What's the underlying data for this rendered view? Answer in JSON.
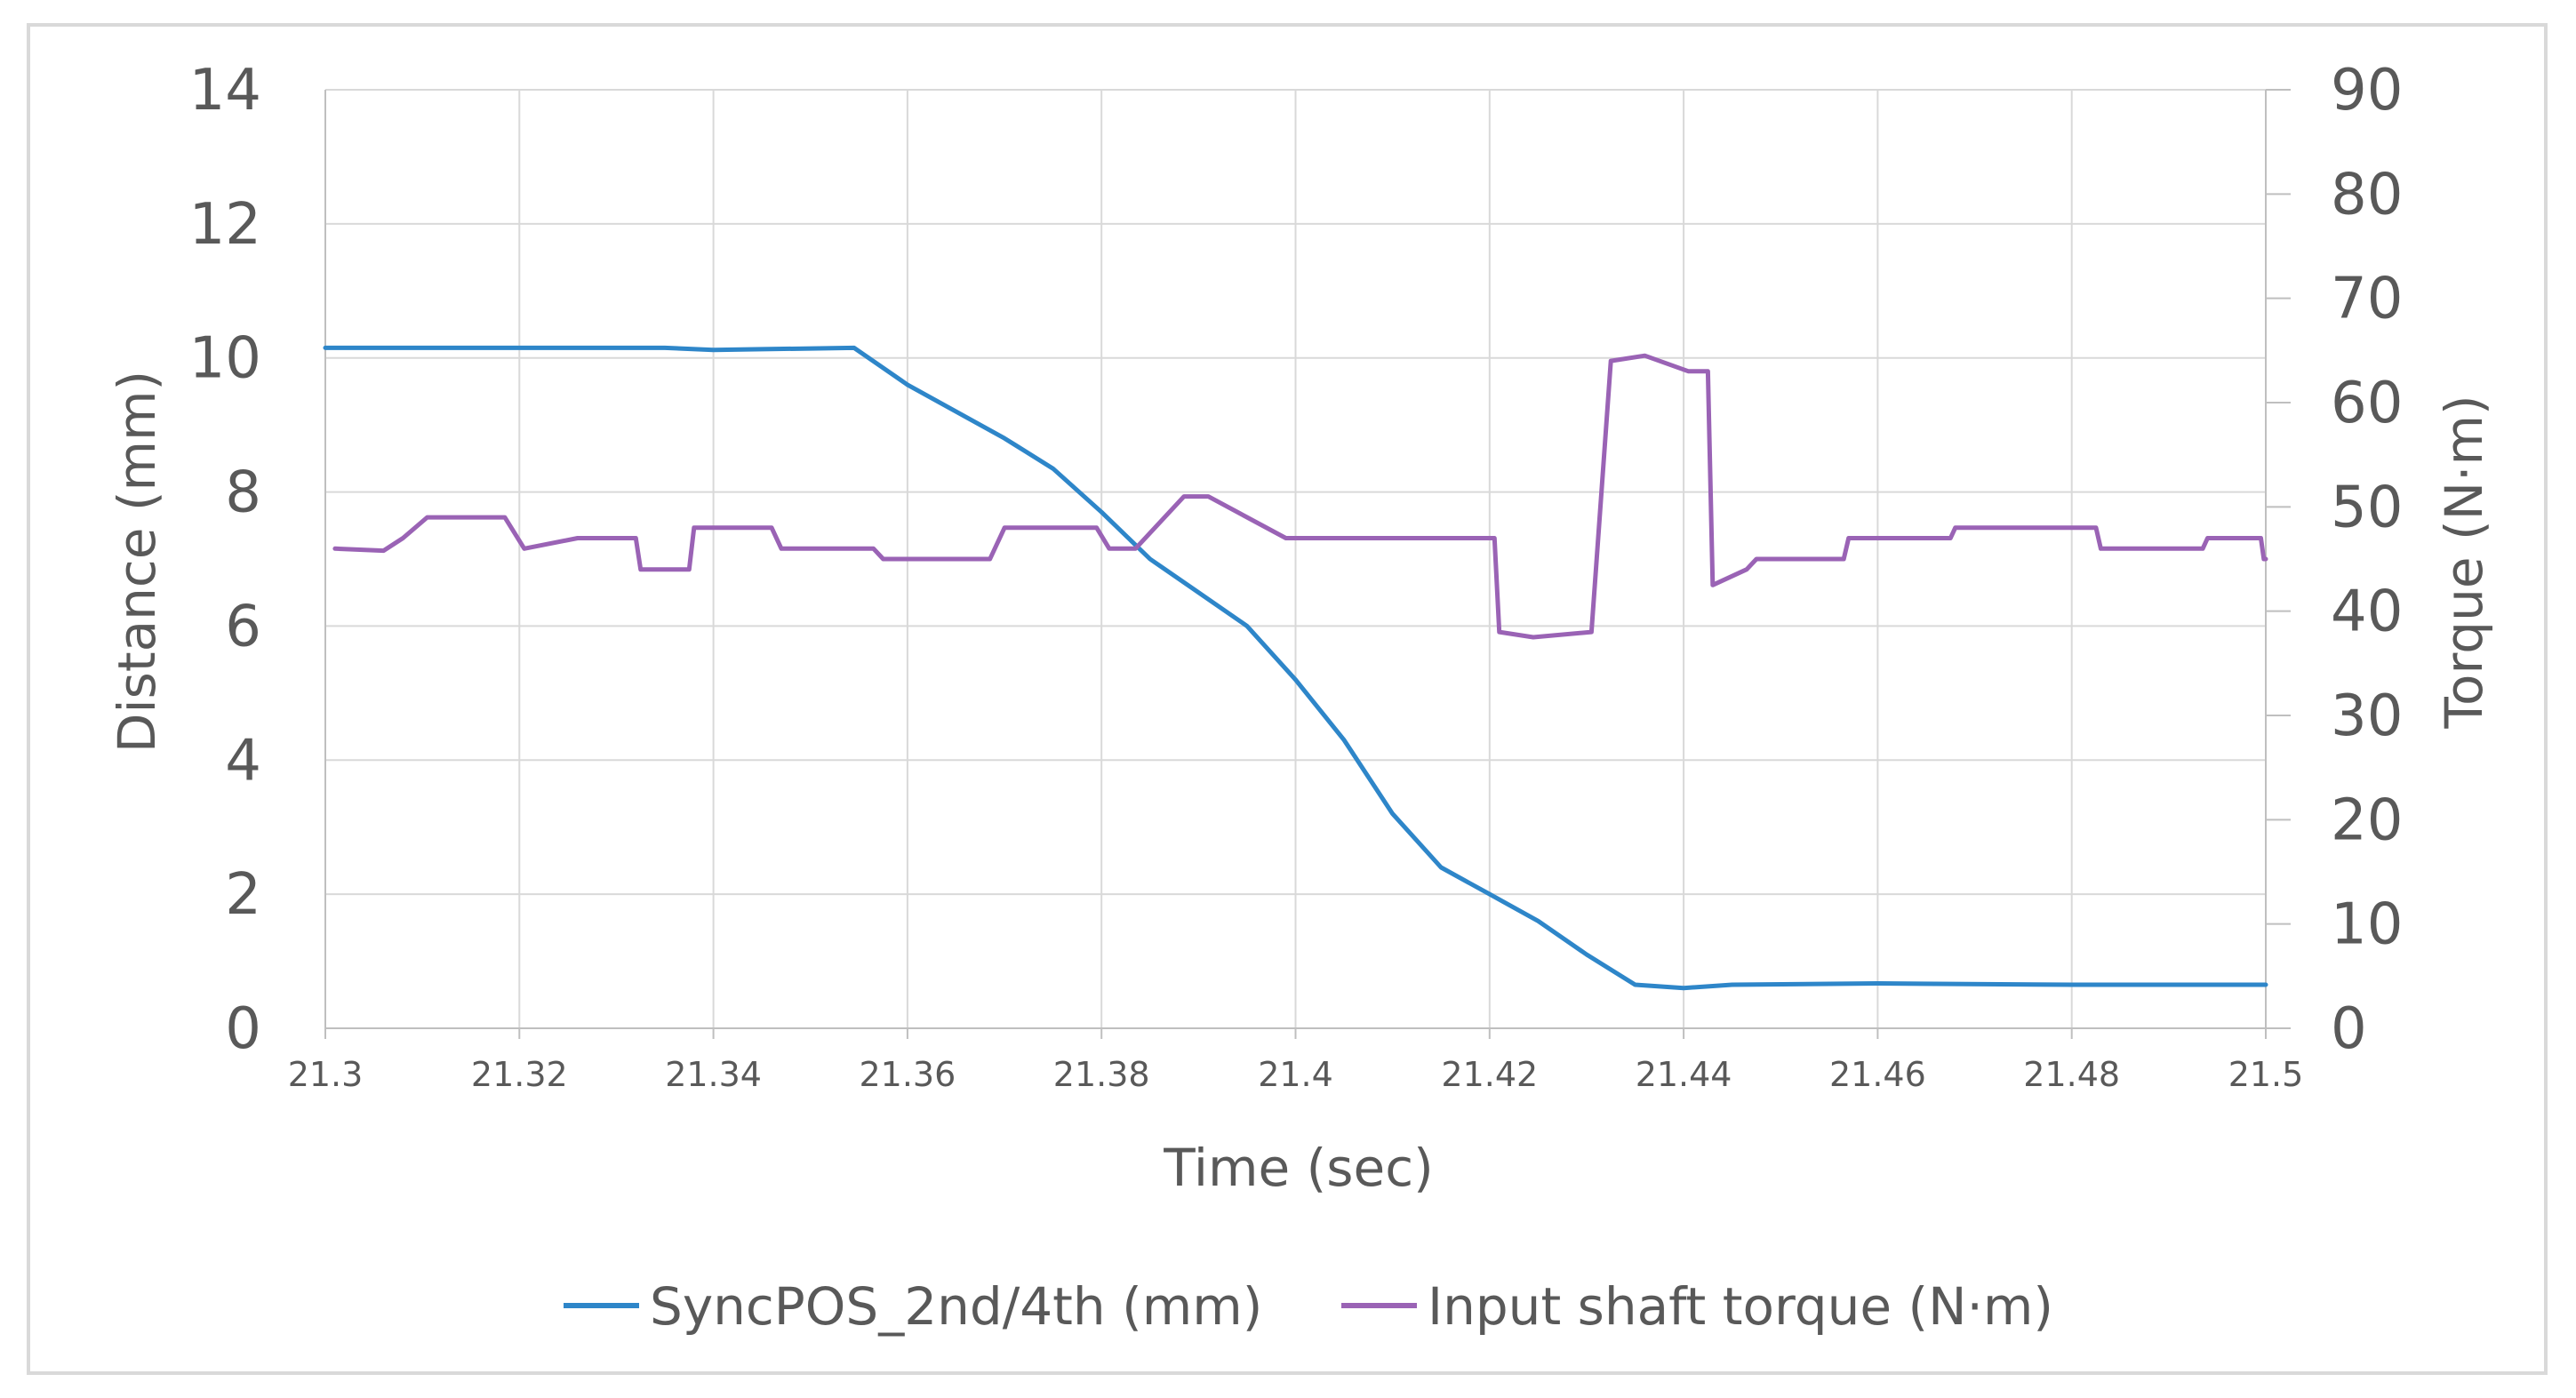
{
  "chart_data": {
    "type": "line",
    "title": "",
    "xlabel": "Time (sec)",
    "ylabel": "Distance (mm)",
    "y2label": "Torque (N·m)",
    "xlim": [
      21.3,
      21.5
    ],
    "ylim": [
      0,
      14
    ],
    "y2lim": [
      0,
      90
    ],
    "grid": true,
    "legend_position": "bottom",
    "x_ticks": [
      "21.3",
      "21.32",
      "21.34",
      "21.36",
      "21.38",
      "21.4",
      "21.42",
      "21.44",
      "21.46",
      "21.48",
      "21.5"
    ],
    "y_ticks": [
      "0",
      "2",
      "4",
      "6",
      "8",
      "10",
      "12",
      "14"
    ],
    "y2_ticks": [
      "0",
      "10",
      "20",
      "30",
      "40",
      "50",
      "60",
      "70",
      "80",
      "90"
    ],
    "series": [
      {
        "name": "SyncPOS_2nd/4th (mm)",
        "axis": "left",
        "color": "#2e86c9",
        "points": [
          [
            21.3,
            10.15
          ],
          [
            21.335,
            10.15
          ],
          [
            21.34,
            10.12
          ],
          [
            21.345,
            10.13
          ],
          [
            21.3545,
            10.15
          ],
          [
            21.356,
            10.0
          ],
          [
            21.36,
            9.6
          ],
          [
            21.365,
            9.2
          ],
          [
            21.37,
            8.8
          ],
          [
            21.375,
            8.35
          ],
          [
            21.38,
            7.7
          ],
          [
            21.385,
            7.0
          ],
          [
            21.39,
            6.5
          ],
          [
            21.395,
            6.0
          ],
          [
            21.4,
            5.2
          ],
          [
            21.405,
            4.3
          ],
          [
            21.41,
            3.2
          ],
          [
            21.415,
            2.4
          ],
          [
            21.42,
            2.0
          ],
          [
            21.425,
            1.6
          ],
          [
            21.43,
            1.1
          ],
          [
            21.435,
            0.65
          ],
          [
            21.44,
            0.6
          ],
          [
            21.445,
            0.65
          ],
          [
            21.46,
            0.67
          ],
          [
            21.48,
            0.65
          ],
          [
            21.5,
            0.65
          ]
        ]
      },
      {
        "name": "Input shaft torque (N·m)",
        "axis": "right",
        "color": "#9a63b5",
        "points": [
          [
            21.301,
            46
          ],
          [
            21.306,
            45.8
          ],
          [
            21.308,
            47
          ],
          [
            21.3105,
            49
          ],
          [
            21.3185,
            49
          ],
          [
            21.3205,
            46
          ],
          [
            21.326,
            47
          ],
          [
            21.332,
            47
          ],
          [
            21.3325,
            44
          ],
          [
            21.3375,
            44
          ],
          [
            21.338,
            48
          ],
          [
            21.346,
            48
          ],
          [
            21.347,
            46
          ],
          [
            21.3565,
            46
          ],
          [
            21.3575,
            45
          ],
          [
            21.3685,
            45
          ],
          [
            21.37,
            48
          ],
          [
            21.3795,
            48
          ],
          [
            21.3808,
            46
          ],
          [
            21.3835,
            46
          ],
          [
            21.3885,
            51
          ],
          [
            21.391,
            51
          ],
          [
            21.399,
            47
          ],
          [
            21.4205,
            47
          ],
          [
            21.421,
            38
          ],
          [
            21.4245,
            37.5
          ],
          [
            21.4305,
            38
          ],
          [
            21.4325,
            64
          ],
          [
            21.436,
            64.5
          ],
          [
            21.4405,
            63
          ],
          [
            21.4425,
            63
          ],
          [
            21.443,
            42.5
          ],
          [
            21.4465,
            44
          ],
          [
            21.4475,
            45
          ],
          [
            21.4565,
            45
          ],
          [
            21.457,
            47
          ],
          [
            21.4675,
            47
          ],
          [
            21.468,
            48
          ],
          [
            21.4825,
            48
          ],
          [
            21.483,
            46
          ],
          [
            21.4935,
            46
          ],
          [
            21.494,
            47
          ],
          [
            21.4995,
            47
          ],
          [
            21.4998,
            45
          ],
          [
            21.5,
            45
          ]
        ]
      }
    ]
  }
}
